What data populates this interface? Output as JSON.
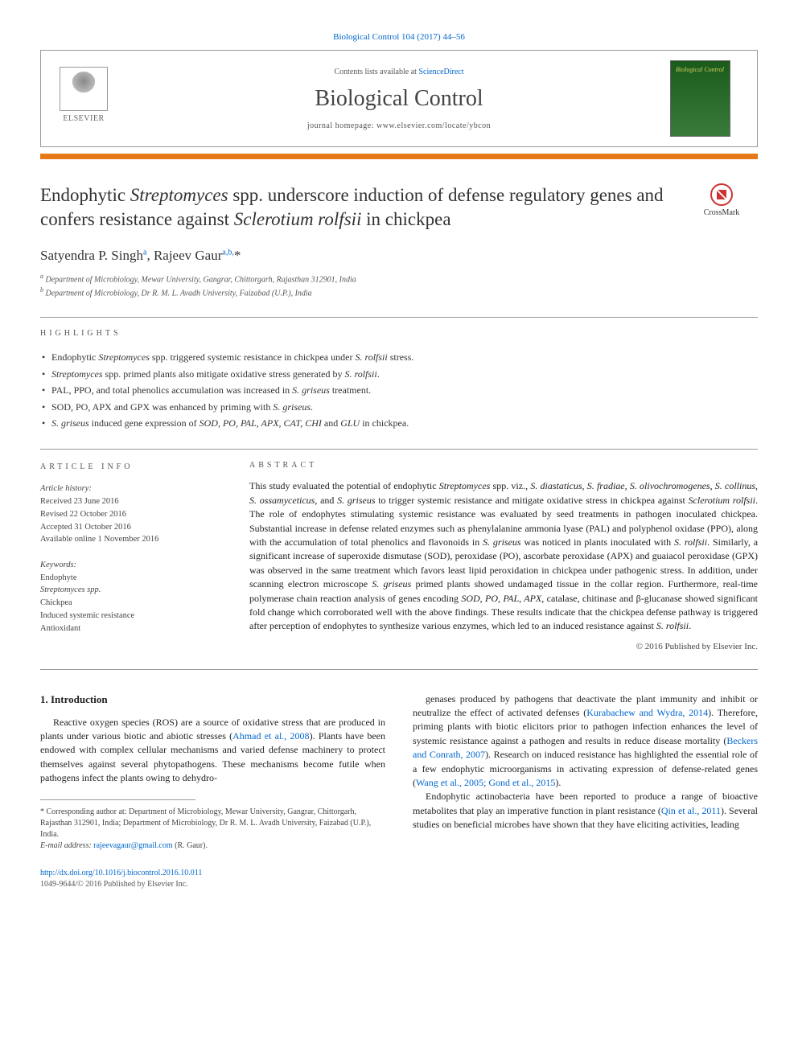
{
  "top_citation": "Biological Control 104 (2017) 44–56",
  "banner": {
    "contents_prefix": "Contents lists available at ",
    "contents_link": "ScienceDirect",
    "journal_name": "Biological Control",
    "homepage_prefix": "journal homepage: ",
    "homepage_url": "www.elsevier.com/locate/ybcon",
    "publisher": "ELSEVIER",
    "cover_label": "Biological Control"
  },
  "crossmark_label": "CrossMark",
  "title_html": "Endophytic <em>Streptomyces</em> spp. underscore induction of defense regulatory genes and confers resistance against <em>Sclerotium rolfsii</em> in chickpea",
  "authors_html": "Satyendra P. Singh<sup>a</sup>, Rajeev Gaur<sup>a,b,</sup>*",
  "affiliations": [
    {
      "sup": "a",
      "text": "Department of Microbiology, Mewar University, Gangrar, Chittorgarh, Rajasthan 312901, India"
    },
    {
      "sup": "b",
      "text": "Department of Microbiology, Dr R. M. L. Avadh University, Faizabad (U.P.), India"
    }
  ],
  "highlights_label": "HIGHLIGHTS",
  "highlights": [
    "Endophytic <em>Streptomyces</em> spp. triggered systemic resistance in chickpea under <em>S. rolfsii</em> stress.",
    "<em>Streptomyces</em> spp. primed plants also mitigate oxidative stress generated by <em>S. rolfsii</em>.",
    "PAL, PPO, and total phenolics accumulation was increased in <em>S. griseus</em> treatment.",
    "SOD, PO, APX and GPX was enhanced by priming with <em>S. griseus</em>.",
    "<em>S. griseus</em> induced gene expression of <em>SOD, PO, PAL, APX, CAT, CHI</em> and <em>GLU</em> in chickpea."
  ],
  "article_info": {
    "label": "ARTICLE INFO",
    "history_label": "Article history:",
    "received": "Received 23 June 2016",
    "revised": "Revised 22 October 2016",
    "accepted": "Accepted 31 October 2016",
    "online": "Available online 1 November 2016",
    "keywords_label": "Keywords:",
    "keywords": [
      "Endophyte",
      "Streptomyces spp.",
      "Chickpea",
      "Induced systemic resistance",
      "Antioxidant"
    ]
  },
  "abstract": {
    "label": "ABSTRACT",
    "text_html": "This study evaluated the potential of endophytic <em>Streptomyces</em> spp. viz., <em>S. diastaticus, S. fradiae, S. olivochromogenes, S. collinus, S. ossamyceticus,</em> and <em>S. griseus</em> to trigger systemic resistance and mitigate oxidative stress in chickpea against <em>Sclerotium rolfsii</em>. The role of endophytes stimulating systemic resistance was evaluated by seed treatments in pathogen inoculated chickpea. Substantial increase in defense related enzymes such as phenylalanine ammonia lyase (PAL) and polyphenol oxidase (PPO), along with the accumulation of total phenolics and flavonoids in <em>S. griseus</em> was noticed in plants inoculated with <em>S. rolfsii</em>. Similarly, a significant increase of superoxide dismutase (SOD), peroxidase (PO), ascorbate peroxidase (APX) and guaiacol peroxidase (GPX) was observed in the same treatment which favors least lipid peroxidation in chickpea under pathogenic stress. In addition, under scanning electron microscope <em>S. griseus</em> primed plants showed undamaged tissue in the collar region. Furthermore, real-time polymerase chain reaction analysis of genes encoding <em>SOD, PO, PAL, APX</em>, catalase, chitinase and β-glucanase showed significant fold change which corroborated well with the above findings. These results indicate that the chickpea defense pathway is triggered after perception of endophytes to synthesize various enzymes, which led to an induced resistance against <em>S. rolfsii</em>.",
    "copyright": "© 2016 Published by Elsevier Inc."
  },
  "intro": {
    "heading": "1. Introduction",
    "left_para_html": "Reactive oxygen species (ROS) are a source of oxidative stress that are produced in plants under various biotic and abiotic stresses (<a href=\"#\">Ahmad et al., 2008</a>). Plants have been endowed with complex cellular mechanisms and varied defense machinery to protect themselves against several phytopathogens. These mechanisms become futile when pathogens infect the plants owing to dehydro-",
    "right_para1_html": "genases produced by pathogens that deactivate the plant immunity and inhibit or neutralize the effect of activated defenses (<a href=\"#\">Kurabachew and Wydra, 2014</a>). Therefore, priming plants with biotic elicitors prior to pathogen infection enhances the level of systemic resistance against a pathogen and results in reduce disease mortality (<a href=\"#\">Beckers and Conrath, 2007</a>). Research on induced resistance has highlighted the essential role of a few endophytic microorganisms in activating expression of defense-related genes (<a href=\"#\">Wang et al., 2005; Gond et al., 2015</a>).",
    "right_para2_html": "Endophytic actinobacteria have been reported to produce a range of bioactive metabolites that play an imperative function in plant resistance (<a href=\"#\">Qin et al., 2011</a>). Several studies on beneficial microbes have shown that they have eliciting activities, leading"
  },
  "footnote": {
    "corr_html": "* Corresponding author at: Department of Microbiology, Mewar University, Gangrar, Chittorgarh, Rajasthan 312901, India; Department of Microbiology, Dr R. M. L. Avadh University, Faizabad (U.P.), India.",
    "email_label": "E-mail address: ",
    "email": "rajeevagaur@gmail.com",
    "email_person": " (R. Gaur)."
  },
  "footer": {
    "doi_url": "http://dx.doi.org/10.1016/j.biocontrol.2016.10.011",
    "issn_line": "1049-9644/© 2016 Published by Elsevier Inc."
  },
  "colors": {
    "link": "#0066cc",
    "accent_bar": "#e67817",
    "cover_bg": "#2a6a2a"
  }
}
